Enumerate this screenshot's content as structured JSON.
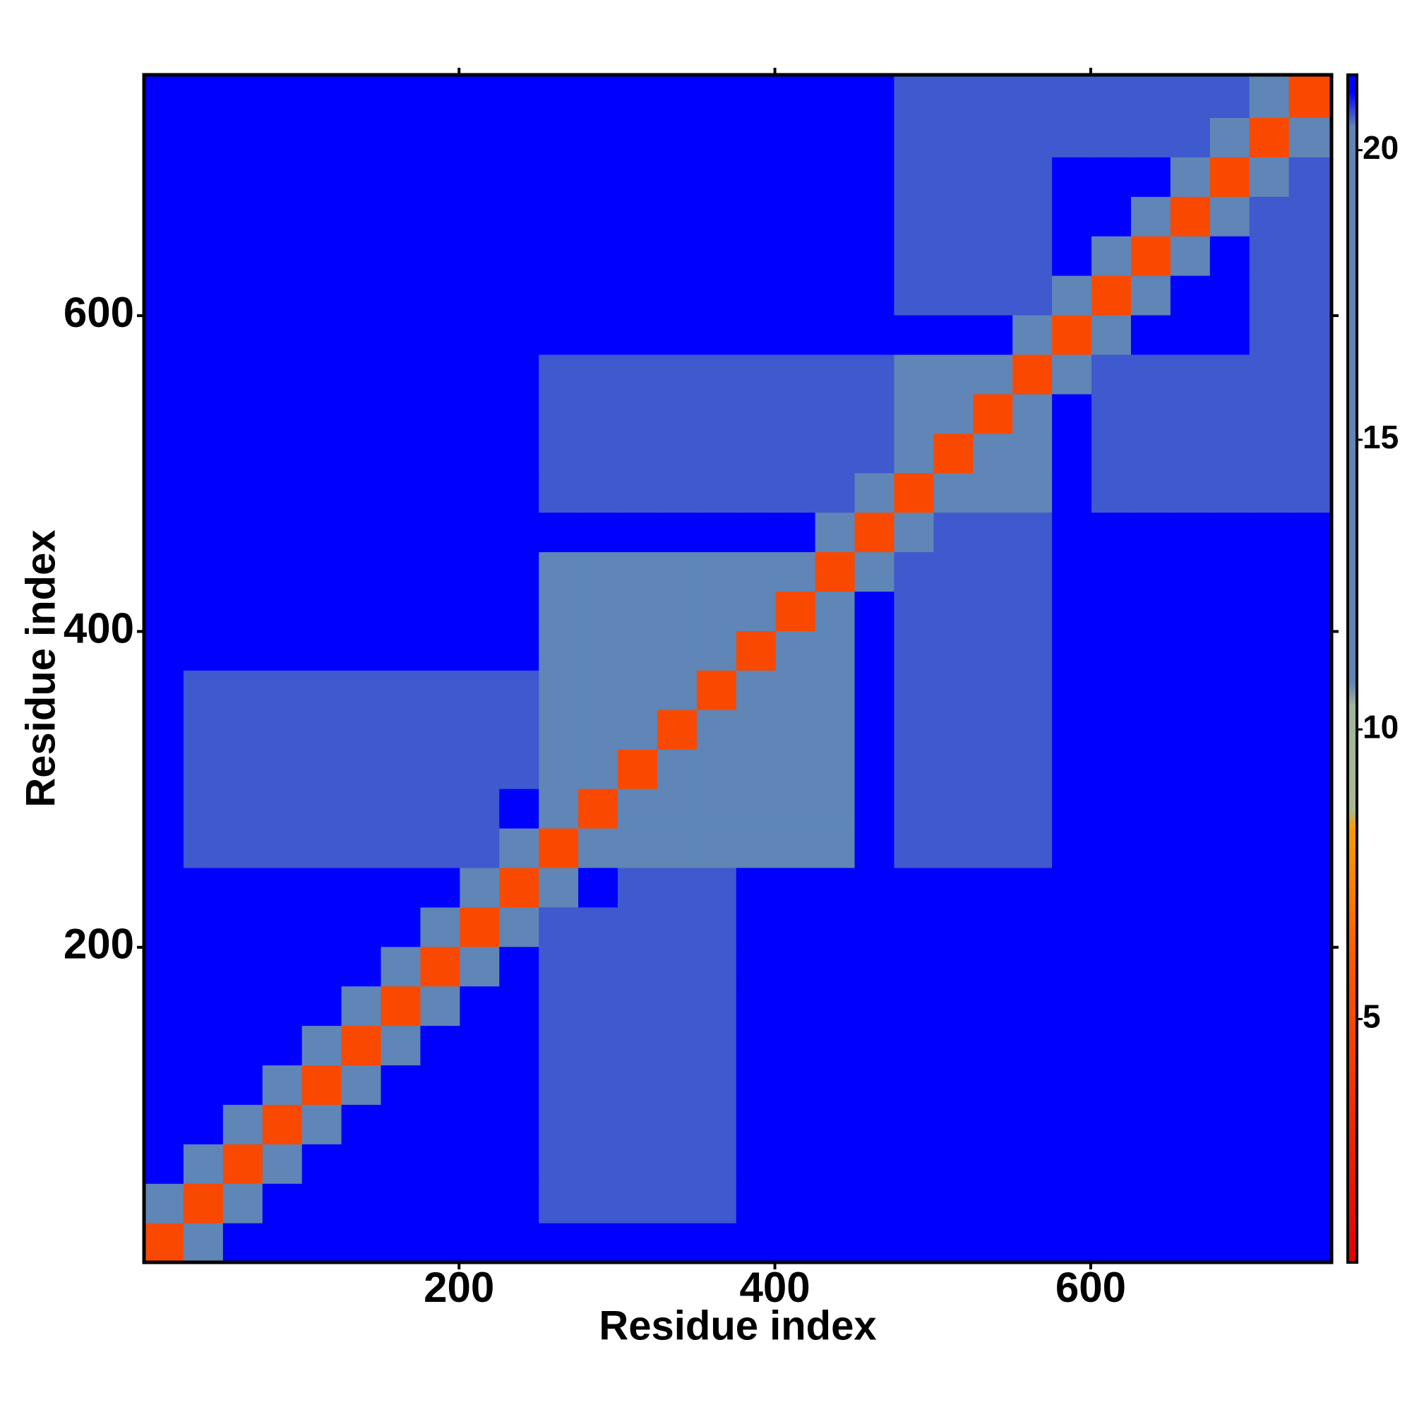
{
  "chart_data": {
    "type": "heatmap",
    "x_label": "Residue index",
    "y_label": "Residue index",
    "xlim": [
      0.5,
      752.5
    ],
    "ylim": [
      0.5,
      752.5
    ],
    "xticks": [
      200,
      400,
      600
    ],
    "yticks": [
      200,
      400,
      600
    ],
    "bins": [
      0.5,
      25.5,
      50.5,
      75.5,
      100.5,
      125.5,
      150.5,
      175.5,
      200.5,
      225.5,
      250.5,
      275.5,
      300.5,
      325.5,
      350.5,
      375.5,
      400.5,
      425.5,
      450.5,
      475.5,
      500.5,
      525.5,
      550.5,
      575.5,
      600.5,
      625.5,
      650.5,
      675.5,
      700.5,
      725.5,
      752.5
    ],
    "zlim": [
      0.8,
      21.3
    ],
    "zticks": [
      5,
      10,
      15,
      20
    ],
    "colorscale": [
      [
        0.8,
        "#e00000"
      ],
      [
        6,
        "#ff5a00"
      ],
      [
        8.3,
        "#ff9a00"
      ],
      [
        8.6,
        "#a9b98c"
      ],
      [
        10.4,
        "#9fb69a"
      ],
      [
        10.8,
        "#5f86b6"
      ],
      [
        20.4,
        "#5f86b6"
      ],
      [
        21,
        "#0000ff"
      ]
    ],
    "z": [
      [
        5,
        16,
        21,
        21,
        21,
        21,
        21,
        21,
        21,
        21,
        21,
        21,
        21,
        21,
        21,
        21,
        21,
        21,
        21,
        21,
        21,
        21,
        21,
        21,
        21,
        21,
        21,
        21,
        21,
        21
      ],
      [
        16,
        5,
        11,
        21,
        21,
        21,
        21,
        21,
        21,
        21,
        20.6,
        20.6,
        20.6,
        20.6,
        20.6,
        21,
        21,
        21,
        21,
        21,
        21,
        21,
        21,
        21,
        21,
        21,
        21,
        21,
        21,
        21
      ],
      [
        21,
        11,
        5,
        16,
        21,
        21,
        21,
        21,
        21,
        21,
        20.6,
        20.6,
        20.6,
        20.6,
        20.6,
        21,
        21,
        21,
        21,
        21,
        21,
        21,
        21,
        21,
        21,
        21,
        21,
        21,
        21,
        21
      ],
      [
        21,
        21,
        16,
        5,
        16,
        21,
        21,
        21,
        21,
        21,
        20.6,
        20.6,
        20.6,
        20.6,
        20.6,
        21,
        21,
        21,
        21,
        21,
        21,
        21,
        21,
        21,
        21,
        21,
        21,
        21,
        21,
        21
      ],
      [
        21,
        21,
        21,
        16,
        5,
        11,
        21,
        21,
        21,
        21,
        20.6,
        20.6,
        20.6,
        20.6,
        20.6,
        21,
        21,
        21,
        21,
        21,
        21,
        21,
        21,
        21,
        21,
        21,
        21,
        21,
        21,
        21
      ],
      [
        21,
        21,
        21,
        21,
        11,
        5,
        16,
        21,
        21,
        21,
        20.6,
        20.6,
        20.6,
        20.6,
        20.6,
        21,
        21,
        21,
        21,
        21,
        21,
        21,
        21,
        21,
        21,
        21,
        21,
        21,
        21,
        21
      ],
      [
        21,
        21,
        21,
        21,
        21,
        16,
        5,
        11,
        21,
        21,
        20.6,
        20.6,
        20.6,
        20.6,
        20.6,
        21,
        21,
        21,
        21,
        21,
        21,
        21,
        21,
        21,
        21,
        21,
        21,
        21,
        21,
        21
      ],
      [
        21,
        21,
        21,
        21,
        21,
        21,
        11,
        5,
        16,
        21,
        20.6,
        20.6,
        20.6,
        20.6,
        20.6,
        21,
        21,
        21,
        21,
        21,
        21,
        21,
        21,
        21,
        21,
        21,
        21,
        21,
        21,
        21
      ],
      [
        21,
        21,
        21,
        21,
        21,
        21,
        21,
        16,
        5,
        16,
        20.6,
        20.6,
        20.6,
        20.6,
        20.6,
        21,
        21,
        21,
        21,
        21,
        21,
        21,
        21,
        21,
        21,
        21,
        21,
        21,
        21,
        21
      ],
      [
        21,
        21,
        21,
        21,
        21,
        21,
        21,
        21,
        16,
        5,
        16,
        21,
        20.6,
        20.6,
        20.6,
        21,
        21,
        21,
        21,
        21,
        21,
        21,
        21,
        21,
        21,
        21,
        21,
        21,
        21,
        21
      ],
      [
        21,
        20.6,
        20.6,
        20.6,
        20.6,
        20.6,
        20.6,
        20.6,
        20.6,
        16,
        5,
        11,
        13,
        13,
        13,
        13,
        13,
        13,
        21,
        20.6,
        20.6,
        20.6,
        20.6,
        21,
        21,
        21,
        21,
        21,
        21,
        21
      ],
      [
        21,
        20.6,
        20.6,
        20.6,
        20.6,
        20.6,
        20.6,
        20.6,
        20.6,
        21,
        11,
        5,
        11,
        13,
        13,
        13,
        13,
        13,
        21,
        20.6,
        20.6,
        20.6,
        20.6,
        21,
        21,
        21,
        21,
        21,
        21,
        21
      ],
      [
        21,
        20.6,
        20.6,
        20.6,
        20.6,
        20.6,
        20.6,
        20.6,
        20.6,
        20.6,
        13,
        11,
        5,
        11,
        13,
        13,
        13,
        13,
        21,
        20.6,
        20.6,
        20.6,
        20.6,
        21,
        21,
        21,
        21,
        21,
        21,
        21
      ],
      [
        21,
        20.6,
        20.6,
        20.6,
        20.6,
        20.6,
        20.6,
        20.6,
        20.6,
        20.6,
        13,
        13,
        11,
        5,
        11,
        13,
        13,
        13,
        21,
        20.6,
        20.6,
        20.6,
        20.6,
        21,
        21,
        21,
        21,
        21,
        21,
        21
      ],
      [
        21,
        20.6,
        20.6,
        20.6,
        20.6,
        20.6,
        20.6,
        20.6,
        20.6,
        20.6,
        13,
        13,
        13,
        11,
        5,
        11,
        13,
        13,
        21,
        20.6,
        20.6,
        20.6,
        20.6,
        21,
        21,
        21,
        21,
        21,
        21,
        21
      ],
      [
        21,
        21,
        21,
        21,
        21,
        21,
        21,
        21,
        21,
        21,
        13,
        13,
        13,
        13,
        11,
        5,
        11,
        13,
        21,
        20.6,
        20.6,
        20.6,
        20.6,
        21,
        21,
        21,
        21,
        21,
        21,
        21
      ],
      [
        21,
        21,
        21,
        21,
        21,
        21,
        21,
        21,
        21,
        21,
        13,
        13,
        13,
        13,
        13,
        11,
        5,
        11,
        21,
        20.6,
        20.6,
        20.6,
        20.6,
        21,
        21,
        21,
        21,
        21,
        21,
        21
      ],
      [
        21,
        21,
        21,
        21,
        21,
        21,
        21,
        21,
        21,
        21,
        13,
        13,
        13,
        13,
        13,
        13,
        11,
        5,
        16,
        20.6,
        20.6,
        20.6,
        20.6,
        21,
        21,
        21,
        21,
        21,
        21,
        21
      ],
      [
        21,
        21,
        21,
        21,
        21,
        21,
        21,
        21,
        21,
        21,
        21,
        21,
        21,
        21,
        21,
        21,
        21,
        16,
        5,
        16,
        20.6,
        20.6,
        20.6,
        21,
        21,
        21,
        21,
        21,
        21,
        21
      ],
      [
        21,
        21,
        21,
        21,
        21,
        21,
        21,
        21,
        21,
        21,
        20.6,
        20.6,
        20.6,
        20.6,
        20.6,
        20.6,
        20.6,
        20.6,
        16,
        5,
        11,
        13,
        13,
        21,
        20.6,
        20.6,
        20.6,
        20.6,
        20.6,
        20.6
      ],
      [
        21,
        21,
        21,
        21,
        21,
        21,
        21,
        21,
        21,
        21,
        20.6,
        20.6,
        20.6,
        20.6,
        20.6,
        20.6,
        20.6,
        20.6,
        20.6,
        11,
        5,
        11,
        13,
        21,
        20.6,
        20.6,
        20.6,
        20.6,
        20.6,
        20.6
      ],
      [
        21,
        21,
        21,
        21,
        21,
        21,
        21,
        21,
        21,
        21,
        20.6,
        20.6,
        20.6,
        20.6,
        20.6,
        20.6,
        20.6,
        20.6,
        20.6,
        13,
        11,
        5,
        11,
        21,
        20.6,
        20.6,
        20.6,
        20.6,
        20.6,
        20.6
      ],
      [
        21,
        21,
        21,
        21,
        21,
        21,
        21,
        21,
        21,
        21,
        20.6,
        20.6,
        20.6,
        20.6,
        20.6,
        20.6,
        20.6,
        20.6,
        20.6,
        13,
        13,
        11,
        5,
        16,
        20.6,
        20.6,
        20.6,
        20.6,
        20.6,
        20.6
      ],
      [
        21,
        21,
        21,
        21,
        21,
        21,
        21,
        21,
        21,
        21,
        21,
        21,
        21,
        21,
        21,
        21,
        21,
        21,
        21,
        21,
        21,
        21,
        16,
        5,
        16,
        21,
        21,
        21,
        20.6,
        20.6
      ],
      [
        21,
        21,
        21,
        21,
        21,
        21,
        21,
        21,
        21,
        21,
        21,
        21,
        21,
        21,
        21,
        21,
        21,
        21,
        21,
        20.6,
        20.6,
        20.6,
        20.6,
        16,
        5,
        16,
        21,
        21,
        20.6,
        20.6
      ],
      [
        21,
        21,
        21,
        21,
        21,
        21,
        21,
        21,
        21,
        21,
        21,
        21,
        21,
        21,
        21,
        21,
        21,
        21,
        21,
        20.6,
        20.6,
        20.6,
        20.6,
        21,
        16,
        5,
        16,
        21,
        20.6,
        20.6
      ],
      [
        21,
        21,
        21,
        21,
        21,
        21,
        21,
        21,
        21,
        21,
        21,
        21,
        21,
        21,
        21,
        21,
        21,
        21,
        21,
        20.6,
        20.6,
        20.6,
        20.6,
        21,
        21,
        16,
        5,
        16,
        20.6,
        20.6
      ],
      [
        21,
        21,
        21,
        21,
        21,
        21,
        21,
        21,
        21,
        21,
        21,
        21,
        21,
        21,
        21,
        21,
        21,
        21,
        21,
        20.6,
        20.6,
        20.6,
        20.6,
        21,
        21,
        21,
        16,
        5,
        16,
        20.6
      ],
      [
        21,
        21,
        21,
        21,
        21,
        21,
        21,
        21,
        21,
        21,
        21,
        21,
        21,
        21,
        21,
        21,
        21,
        21,
        21,
        20.6,
        20.6,
        20.6,
        20.6,
        20.6,
        20.6,
        20.6,
        20.6,
        16,
        5,
        11
      ],
      [
        21,
        21,
        21,
        21,
        21,
        21,
        21,
        21,
        21,
        21,
        21,
        21,
        21,
        21,
        21,
        21,
        21,
        21,
        21,
        20.6,
        20.6,
        20.6,
        20.6,
        20.6,
        20.6,
        20.6,
        20.6,
        20.6,
        11,
        5
      ]
    ]
  }
}
